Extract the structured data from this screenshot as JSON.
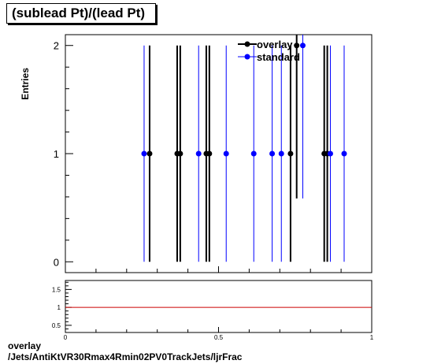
{
  "chart_data": [
    {
      "type": "scatter",
      "title": "(sublead Pt)/(lead Pt)",
      "ylabel": "Entries",
      "xlim": [
        0,
        1
      ],
      "ylim": [
        -0.1,
        2.1
      ],
      "yticks": [
        "0",
        "1",
        "2"
      ],
      "legend": {
        "placement": "top-right",
        "entries": [
          "overlay",
          "standard"
        ]
      },
      "series": [
        {
          "name": "overlay",
          "color": "#000000",
          "points": [
            {
              "x": 0.275,
              "y": 1
            },
            {
              "x": 0.365,
              "y": 1
            },
            {
              "x": 0.375,
              "y": 1
            },
            {
              "x": 0.46,
              "y": 1
            },
            {
              "x": 0.47,
              "y": 1
            },
            {
              "x": 0.735,
              "y": 1
            },
            {
              "x": 0.755,
              "y": 2
            },
            {
              "x": 0.845,
              "y": 1
            },
            {
              "x": 0.855,
              "y": 1
            }
          ]
        },
        {
          "name": "standard",
          "color": "#0000ff",
          "points": [
            {
              "x": 0.257,
              "y": 1
            },
            {
              "x": 0.435,
              "y": 1
            },
            {
              "x": 0.525,
              "y": 1
            },
            {
              "x": 0.615,
              "y": 1
            },
            {
              "x": 0.675,
              "y": 1
            },
            {
              "x": 0.705,
              "y": 1
            },
            {
              "x": 0.775,
              "y": 2
            },
            {
              "x": 0.865,
              "y": 1
            },
            {
              "x": 0.91,
              "y": 1
            }
          ]
        }
      ]
    },
    {
      "type": "line",
      "xlim": [
        0,
        1
      ],
      "ylim": [
        0.3,
        1.75
      ],
      "xticks": [
        "0",
        "0.5",
        "1"
      ],
      "yticks": [
        "0.5",
        "1",
        "1.5"
      ],
      "reference_line": 1,
      "reference_color": "#cc0000"
    }
  ],
  "footer": {
    "line1": "overlay",
    "line2": "/Jets/AntiKtVR30Rmax4Rmin02PV0TrackJets/ljrFrac"
  }
}
